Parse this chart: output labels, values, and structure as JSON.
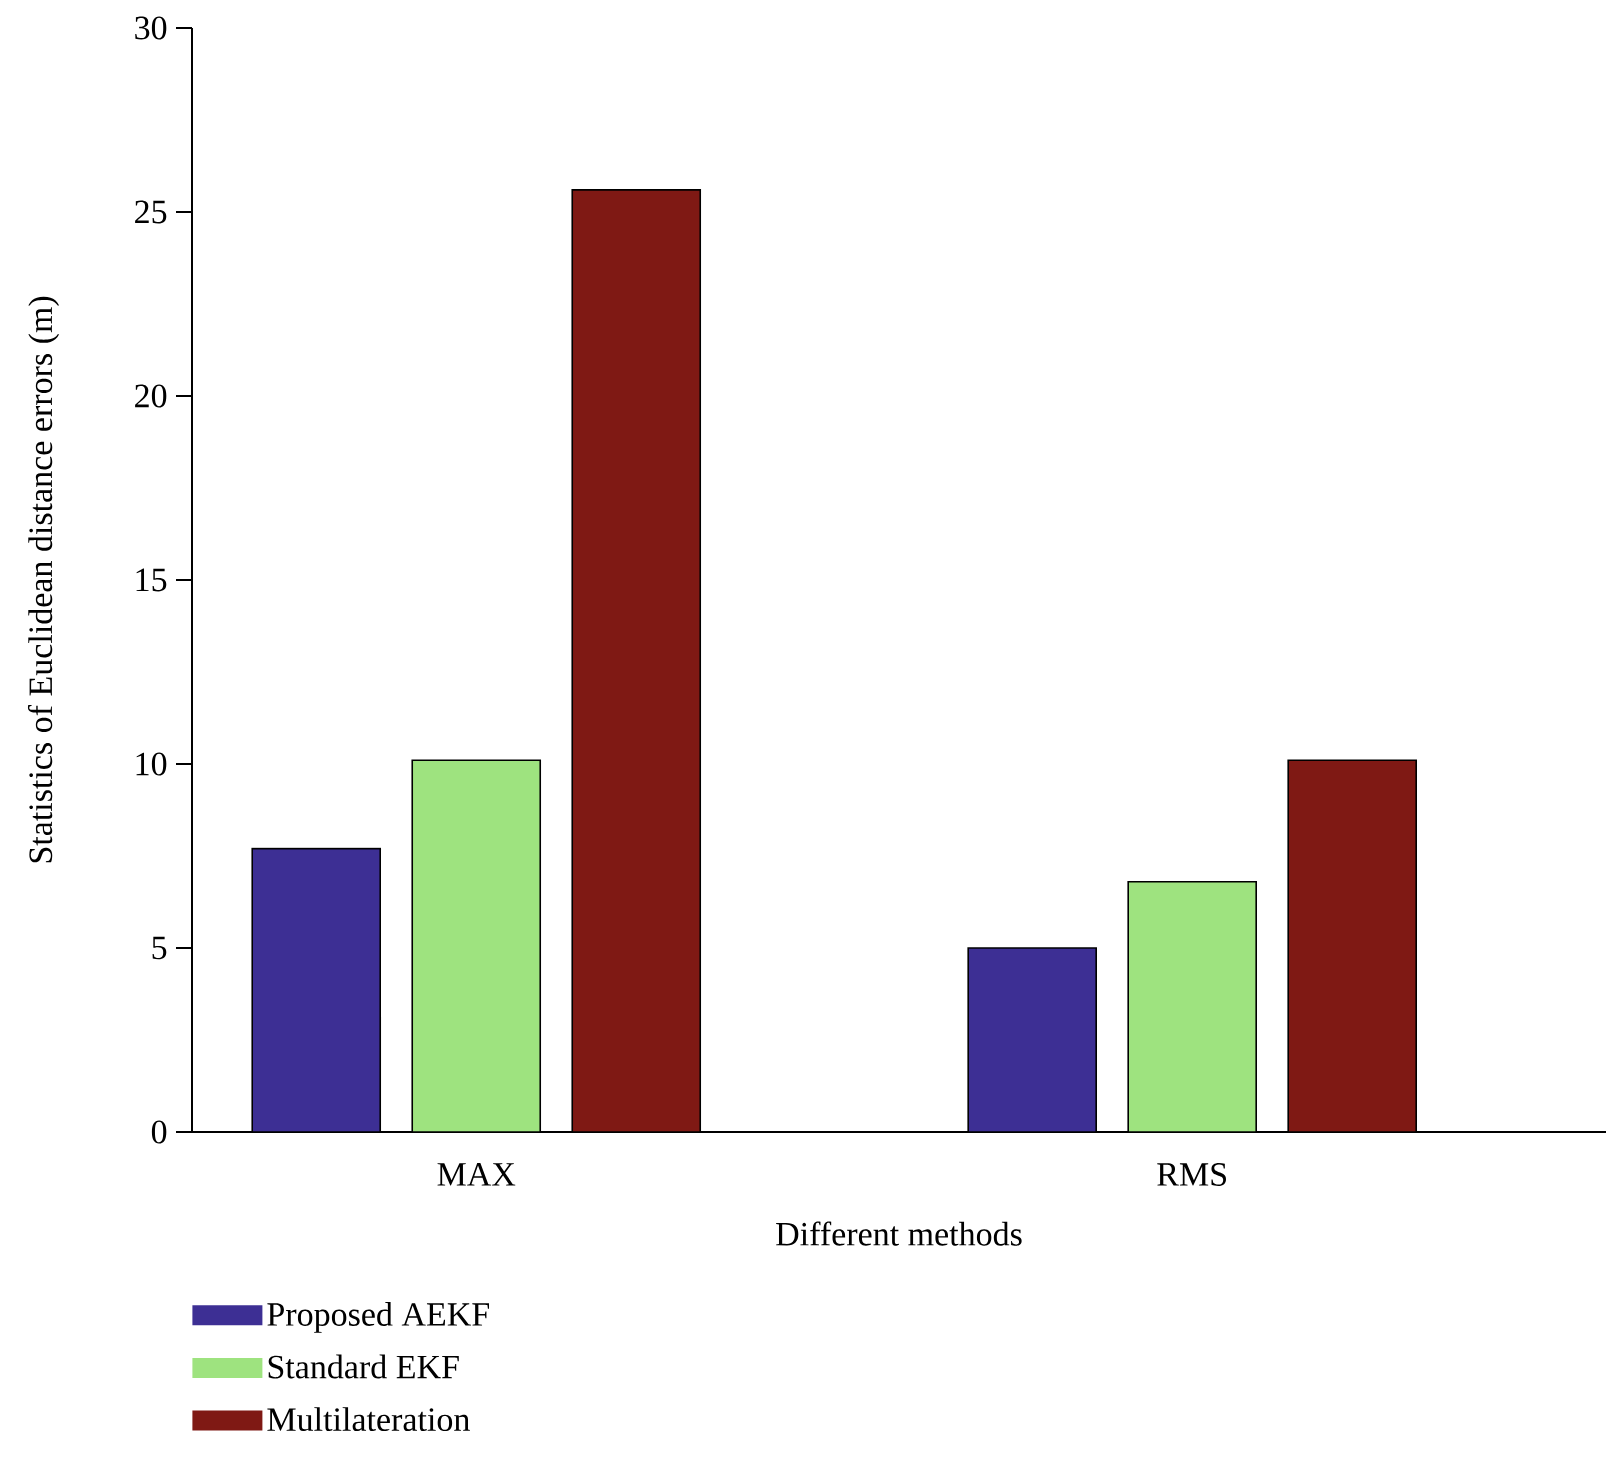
{
  "chart_data": {
    "type": "bar",
    "xlabel": "Different methods",
    "ylabel": "Statistics of Euclidean distance errors (m)",
    "categories": [
      "MAX",
      "RMS"
    ],
    "series": [
      {
        "name": "Proposed AEKF",
        "color": "#3d2f94",
        "values": [
          7.7,
          5.0
        ]
      },
      {
        "name": "Standard EKF",
        "color": "#9ee37f",
        "values": [
          10.1,
          6.8
        ]
      },
      {
        "name": "Multilateration",
        "color": "#7f1914",
        "values": [
          25.6,
          10.1
        ]
      }
    ],
    "ylim": [
      0,
      30
    ],
    "yticks": [
      0,
      5,
      10,
      15,
      20,
      25,
      30
    ],
    "legend": "bottom"
  }
}
